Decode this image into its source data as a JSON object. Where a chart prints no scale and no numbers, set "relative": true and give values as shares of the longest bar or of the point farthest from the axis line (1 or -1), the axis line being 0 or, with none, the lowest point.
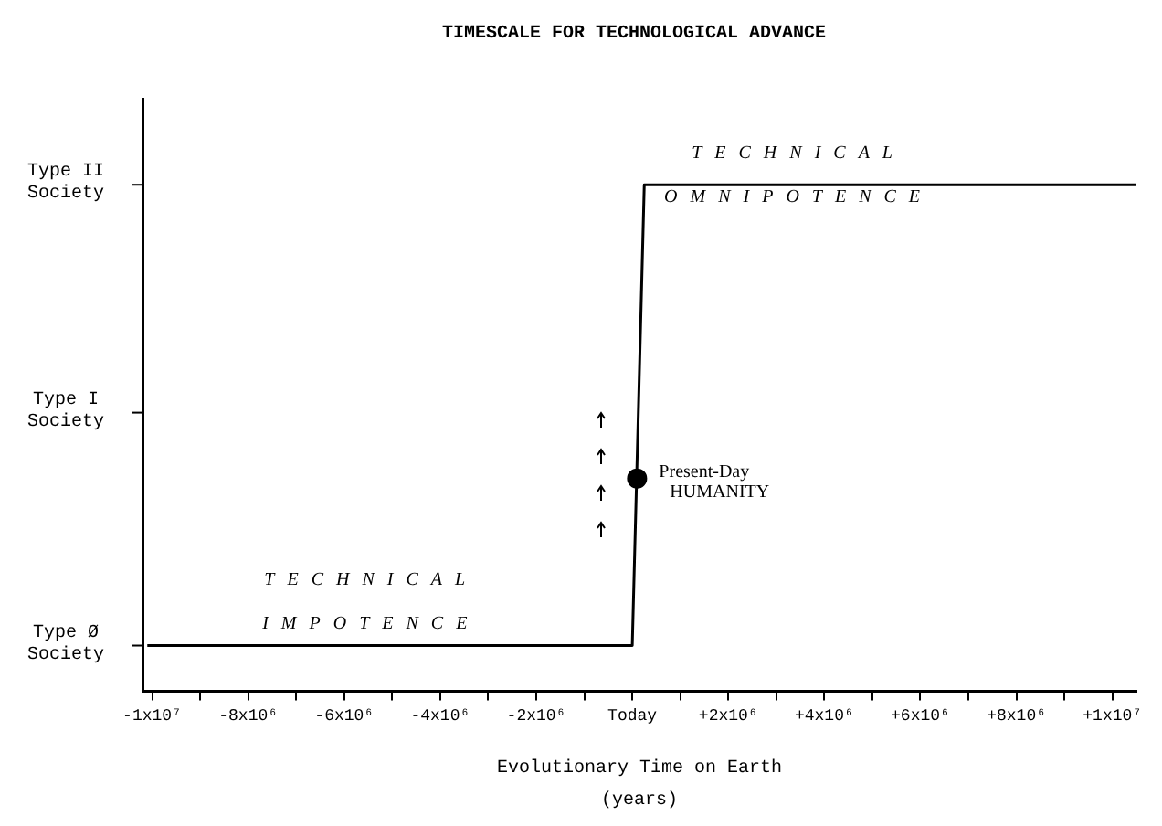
{
  "chart_data": {
    "type": "line",
    "title": "TIMESCALE FOR TECHNOLOGICAL ADVANCE",
    "xlabel": "Evolutionary Time on Earth",
    "relative": true,
    "xlim": [
      -10200000,
      10500000
    ],
    "xticks": [
      {
        "value": -10000000,
        "label": "-1x10⁷"
      },
      {
        "value": -9000000,
        "label": null
      },
      {
        "value": -8000000,
        "label": "-8x10⁶"
      },
      {
        "value": -7000000,
        "label": null
      },
      {
        "value": -6000000,
        "label": "-6x10⁶"
      },
      {
        "value": -5000000,
        "label": null
      },
      {
        "value": -4000000,
        "label": "-4x10⁶"
      },
      {
        "value": -3000000,
        "label": null
      },
      {
        "value": -2000000,
        "label": "-2x10⁶"
      },
      {
        "value": -1000000,
        "label": null
      },
      {
        "value": 0,
        "label": "Today"
      },
      {
        "value": 1000000,
        "label": null
      },
      {
        "value": 2000000,
        "label": "+2x10⁶"
      },
      {
        "value": 3000000,
        "label": null
      },
      {
        "value": 4000000,
        "label": "+4x10⁶"
      },
      {
        "value": 5000000,
        "label": null
      },
      {
        "value": 6000000,
        "label": "+6x10⁶"
      },
      {
        "value": 7000000,
        "label": null
      },
      {
        "value": 8000000,
        "label": "+8x10⁶"
      },
      {
        "value": 9000000,
        "label": null
      },
      {
        "value": 10000000,
        "label": "+1x10⁷"
      }
    ],
    "series": [
      {
        "x": [
          -10100000,
          0,
          250000,
          10500000
        ],
        "values": [
          0.09,
          0.09,
          1,
          1
        ],
        "color": "#000000"
      },
      {
        "type": "scatter",
        "x": [
          100000
        ],
        "values": [
          0.42
        ],
        "color": "#000000",
        "marker": "circle"
      }
    ],
    "annotations": [
      "Type Ø Society",
      "Type I Society",
      "Type II Society",
      "TECHNICAL IMPOTENCE",
      "TECHNICAL OMNIPOTENCE",
      "Present-Day HUMANITY",
      "(years)"
    ],
    "legend": false
  }
}
